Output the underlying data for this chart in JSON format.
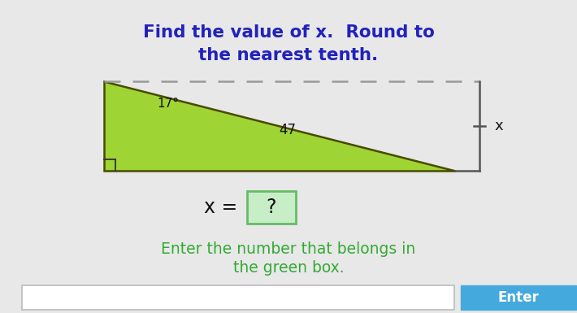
{
  "title_line1": "Find the value of x.  Round to",
  "title_line2": "the nearest tenth.",
  "title_color": "#2222bb",
  "title_fontsize": 15.5,
  "angle_label": "17°",
  "hyp_label": "47",
  "x_label": "x",
  "equation_left": "x = ",
  "question_mark": "?",
  "green_box_fill": "#c8eec8",
  "green_box_border": "#66bb66",
  "enter_text_line1": "Enter the number that belongs in",
  "enter_text_line2": "the green box.",
  "enter_color": "#33aa33",
  "button_color": "#44aadd",
  "button_text": "Enter",
  "bg_color": "#e8e8e8",
  "triangle_fill": "#9fd435",
  "triangle_edge": "#4a4a00",
  "dashed_color": "#999999",
  "rect_edge_color": "#555555"
}
